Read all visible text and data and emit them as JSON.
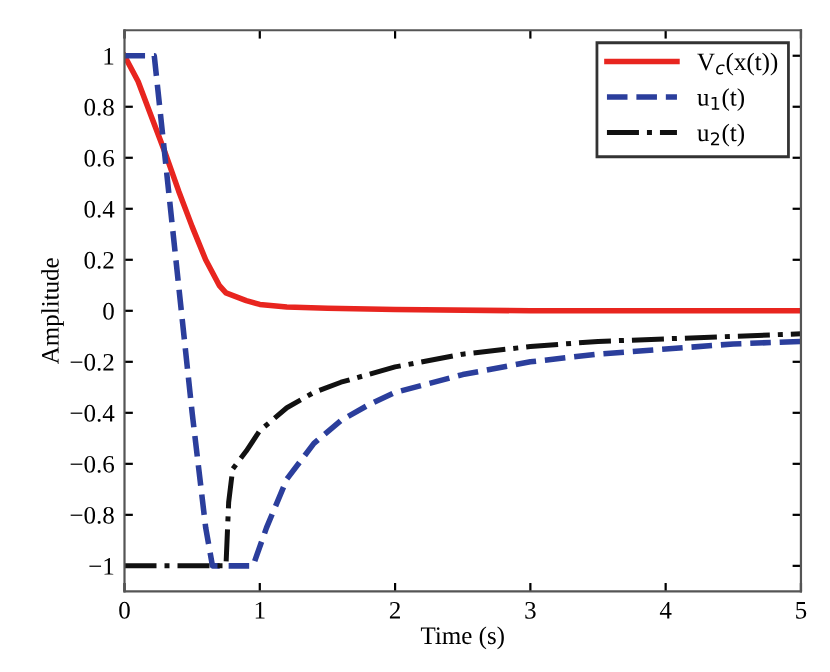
{
  "chart_data": {
    "type": "line",
    "xlabel": "Time (s)",
    "ylabel": "Amplitude",
    "xlim": [
      0,
      5
    ],
    "ylim": [
      -1.1,
      1.1
    ],
    "xticks": [
      0,
      1,
      2,
      3,
      4,
      5
    ],
    "yticks": [
      -1,
      -0.8,
      -0.6,
      -0.4,
      -0.2,
      0,
      0.2,
      0.4,
      0.6,
      0.8,
      1
    ],
    "grid": false,
    "legend": "top right",
    "series": [
      {
        "name": "V$_{c}$(x(t))",
        "color": "#e8251f",
        "line_style": "solid",
        "x": [
          0,
          0.1,
          0.2,
          0.3,
          0.4,
          0.5,
          0.6,
          0.7,
          0.75,
          0.9,
          1.0,
          1.2,
          1.5,
          2,
          3,
          5
        ],
        "values": [
          1,
          0.9,
          0.76,
          0.62,
          0.47,
          0.33,
          0.2,
          0.1,
          0.07,
          0.04,
          0.025,
          0.015,
          0.01,
          0.005,
          0,
          0
        ]
      },
      {
        "name": "u$_{1}$(t)",
        "color": "#2b3e9c",
        "line_style": "dashed",
        "x": [
          0,
          0.22,
          0.3,
          0.4,
          0.5,
          0.6,
          0.65,
          0.95,
          1.05,
          1.2,
          1.4,
          1.6,
          1.8,
          2,
          2.5,
          3,
          3.5,
          4,
          4.5,
          5
        ],
        "values": [
          1,
          1,
          0.6,
          0.1,
          -0.4,
          -0.85,
          -1,
          -1,
          -0.85,
          -0.66,
          -0.52,
          -0.43,
          -0.37,
          -0.32,
          -0.25,
          -0.2,
          -0.17,
          -0.15,
          -0.13,
          -0.12
        ]
      },
      {
        "name": "u$_{2}$(t)",
        "color": "#111111",
        "line_style": "dashdot",
        "x": [
          0,
          0.75,
          0.77,
          0.8,
          0.9,
          1.0,
          1.2,
          1.4,
          1.6,
          2,
          2.5,
          3,
          3.5,
          4,
          4.5,
          5
        ],
        "values": [
          -1,
          -1,
          -0.75,
          -0.62,
          -0.55,
          -0.47,
          -0.38,
          -0.32,
          -0.28,
          -0.22,
          -0.17,
          -0.14,
          -0.12,
          -0.11,
          -0.1,
          -0.09
        ]
      }
    ]
  }
}
